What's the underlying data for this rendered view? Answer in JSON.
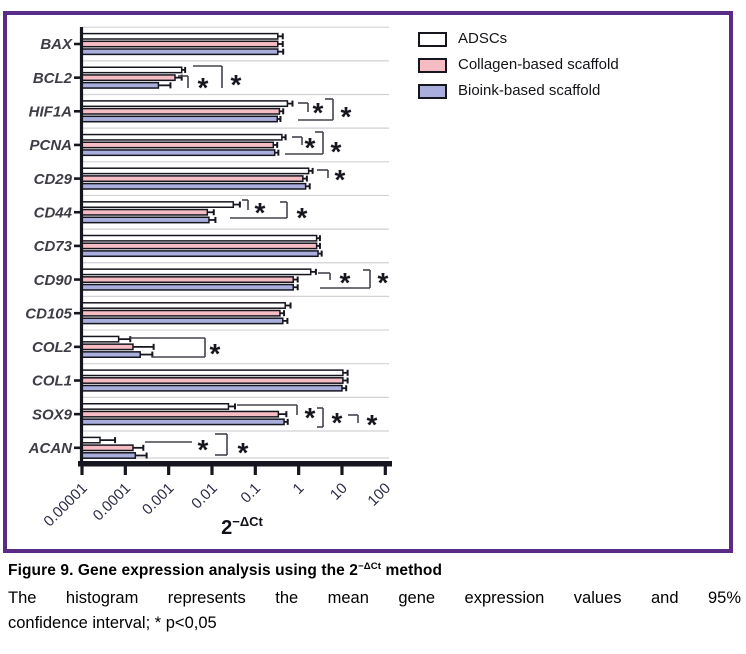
{
  "figure": {
    "border_color": "#5b2c87",
    "caption": {
      "title_prefix": "Figure 9. Gene expression analysis using the 2",
      "title_sup": "−ΔCt",
      "title_suffix": " method",
      "body_line1": "The histogram represents the mean gene expression values and 95%",
      "body_line2": "confidence interval; * p<0,05"
    }
  },
  "legend": {
    "items": [
      {
        "label": "ADSCs",
        "color": "#ffffff"
      },
      {
        "label": "Collagen-based scaffold",
        "color": "#f5bcc3"
      },
      {
        "label": "Bioink-based scaffold",
        "color": "#a9aedd"
      }
    ]
  },
  "chart_data": {
    "type": "bar",
    "orientation": "horizontal",
    "x_scale": "log",
    "xlim": [
      1e-05,
      100
    ],
    "grid": false,
    "legend_position": "top-right",
    "xlabel_base": "2",
    "xlabel_sup": "−ΔCt",
    "x_ticks": [
      1e-05,
      0.0001,
      0.001,
      0.01,
      0.1,
      1,
      10,
      100
    ],
    "x_tick_labels": [
      "0.00001",
      "0.0001",
      "0.001",
      "0.01",
      "0.1",
      "1",
      "10",
      "100"
    ],
    "categories": [
      "BAX",
      "BCL2",
      "HIF1A",
      "PCNA",
      "CD29",
      "CD44",
      "CD73",
      "CD90",
      "CD105",
      "COL2",
      "COL1",
      "SOX9",
      "ACAN"
    ],
    "series": [
      {
        "name": "ADSCs",
        "color": "#ffffff",
        "values": [
          0.33,
          0.002,
          0.55,
          0.41,
          1.7,
          0.031,
          2.6,
          1.9,
          0.49,
          7e-05,
          10.5,
          0.024,
          2.6e-05
        ],
        "upper": [
          0.43,
          0.0024,
          0.72,
          0.5,
          2.1,
          0.044,
          3.1,
          2.5,
          0.65,
          0.00013,
          13.5,
          0.034,
          5.8e-05
        ]
      },
      {
        "name": "Collagen-based scaffold",
        "color": "#f5bcc3",
        "values": [
          0.33,
          0.0014,
          0.36,
          0.26,
          1.25,
          0.0078,
          2.6,
          0.75,
          0.37,
          0.00015,
          10.5,
          0.34,
          0.00015
        ],
        "upper": [
          0.43,
          0.002,
          0.44,
          0.32,
          1.55,
          0.011,
          3.1,
          0.95,
          0.46,
          0.00045,
          13.5,
          0.52,
          0.00026
        ]
      },
      {
        "name": "Bioink-based scaffold",
        "color": "#a9aedd",
        "values": [
          0.33,
          0.00058,
          0.32,
          0.28,
          1.45,
          0.0085,
          2.8,
          0.75,
          0.43,
          0.00022,
          10.0,
          0.46,
          0.00017
        ],
        "upper": [
          0.44,
          0.0011,
          0.38,
          0.34,
          1.8,
          0.012,
          3.4,
          0.95,
          0.55,
          0.00042,
          12.5,
          0.56,
          0.00031
        ]
      }
    ],
    "sig_symbol": "*",
    "significance": [
      {
        "category": "BCL2",
        "stars": [
          [
            203,
            83
          ],
          [
            236,
            80
          ]
        ],
        "lines": [
          [
            178,
            76,
            188,
            76
          ],
          [
            188,
            76,
            188,
            88
          ],
          [
            193,
            66,
            222,
            66
          ],
          [
            222,
            66,
            222,
            88
          ]
        ]
      },
      {
        "category": "HIF1A",
        "stars": [
          [
            318,
            108
          ],
          [
            346,
            112
          ]
        ],
        "lines": [
          [
            298,
            103,
            308,
            103
          ],
          [
            308,
            103,
            308,
            112
          ],
          [
            325,
            99,
            333,
            99
          ],
          [
            333,
            99,
            333,
            120
          ],
          [
            333,
            120,
            298,
            120
          ]
        ]
      },
      {
        "category": "PCNA",
        "stars": [
          [
            310,
            143
          ],
          [
            336,
            147
          ]
        ],
        "lines": [
          [
            292,
            137,
            302,
            137
          ],
          [
            302,
            137,
            302,
            145
          ],
          [
            315,
            132,
            323,
            132
          ],
          [
            323,
            132,
            323,
            154
          ],
          [
            323,
            154,
            285,
            154
          ]
        ]
      },
      {
        "category": "CD29",
        "stars": [
          [
            340,
            175
          ]
        ],
        "lines": [
          [
            317,
            170,
            328,
            170
          ],
          [
            328,
            170,
            328,
            178
          ]
        ]
      },
      {
        "category": "CD44",
        "stars": [
          [
            260,
            208
          ],
          [
            302,
            213
          ]
        ],
        "lines": [
          [
            242,
            200,
            248,
            200
          ],
          [
            248,
            200,
            248,
            210
          ],
          [
            230,
            218,
            287,
            218
          ],
          [
            287,
            218,
            287,
            202
          ],
          [
            287,
            202,
            280,
            202
          ]
        ]
      },
      {
        "category": "CD90",
        "stars": [
          [
            345,
            278
          ],
          [
            383,
            278
          ]
        ],
        "lines": [
          [
            318,
            273,
            330,
            273
          ],
          [
            330,
            273,
            330,
            280
          ],
          [
            320,
            288,
            370,
            288
          ],
          [
            370,
            288,
            370,
            270
          ],
          [
            370,
            270,
            363,
            270
          ]
        ]
      },
      {
        "category": "COL2",
        "stars": [
          [
            215,
            349
          ]
        ],
        "lines": [
          [
            130,
            338,
            205,
            338
          ],
          [
            205,
            338,
            205,
            357
          ],
          [
            205,
            357,
            152,
            357
          ]
        ]
      },
      {
        "category": "SOX9",
        "stars": [
          [
            310,
            413
          ],
          [
            337,
            418
          ],
          [
            372,
            420
          ]
        ],
        "lines": [
          [
            237,
            405,
            297,
            405
          ],
          [
            297,
            405,
            297,
            415
          ],
          [
            317,
            408,
            323,
            408
          ],
          [
            323,
            408,
            323,
            427
          ],
          [
            323,
            427,
            317,
            427
          ],
          [
            348,
            415,
            358,
            415
          ],
          [
            358,
            415,
            358,
            423
          ]
        ]
      },
      {
        "category": "ACAN",
        "stars": [
          [
            203,
            445
          ],
          [
            243,
            448
          ]
        ],
        "lines": [
          [
            145,
            442,
            192,
            442
          ],
          [
            215,
            434,
            227,
            434
          ],
          [
            227,
            434,
            227,
            455
          ],
          [
            227,
            455,
            215,
            455
          ]
        ]
      }
    ]
  }
}
